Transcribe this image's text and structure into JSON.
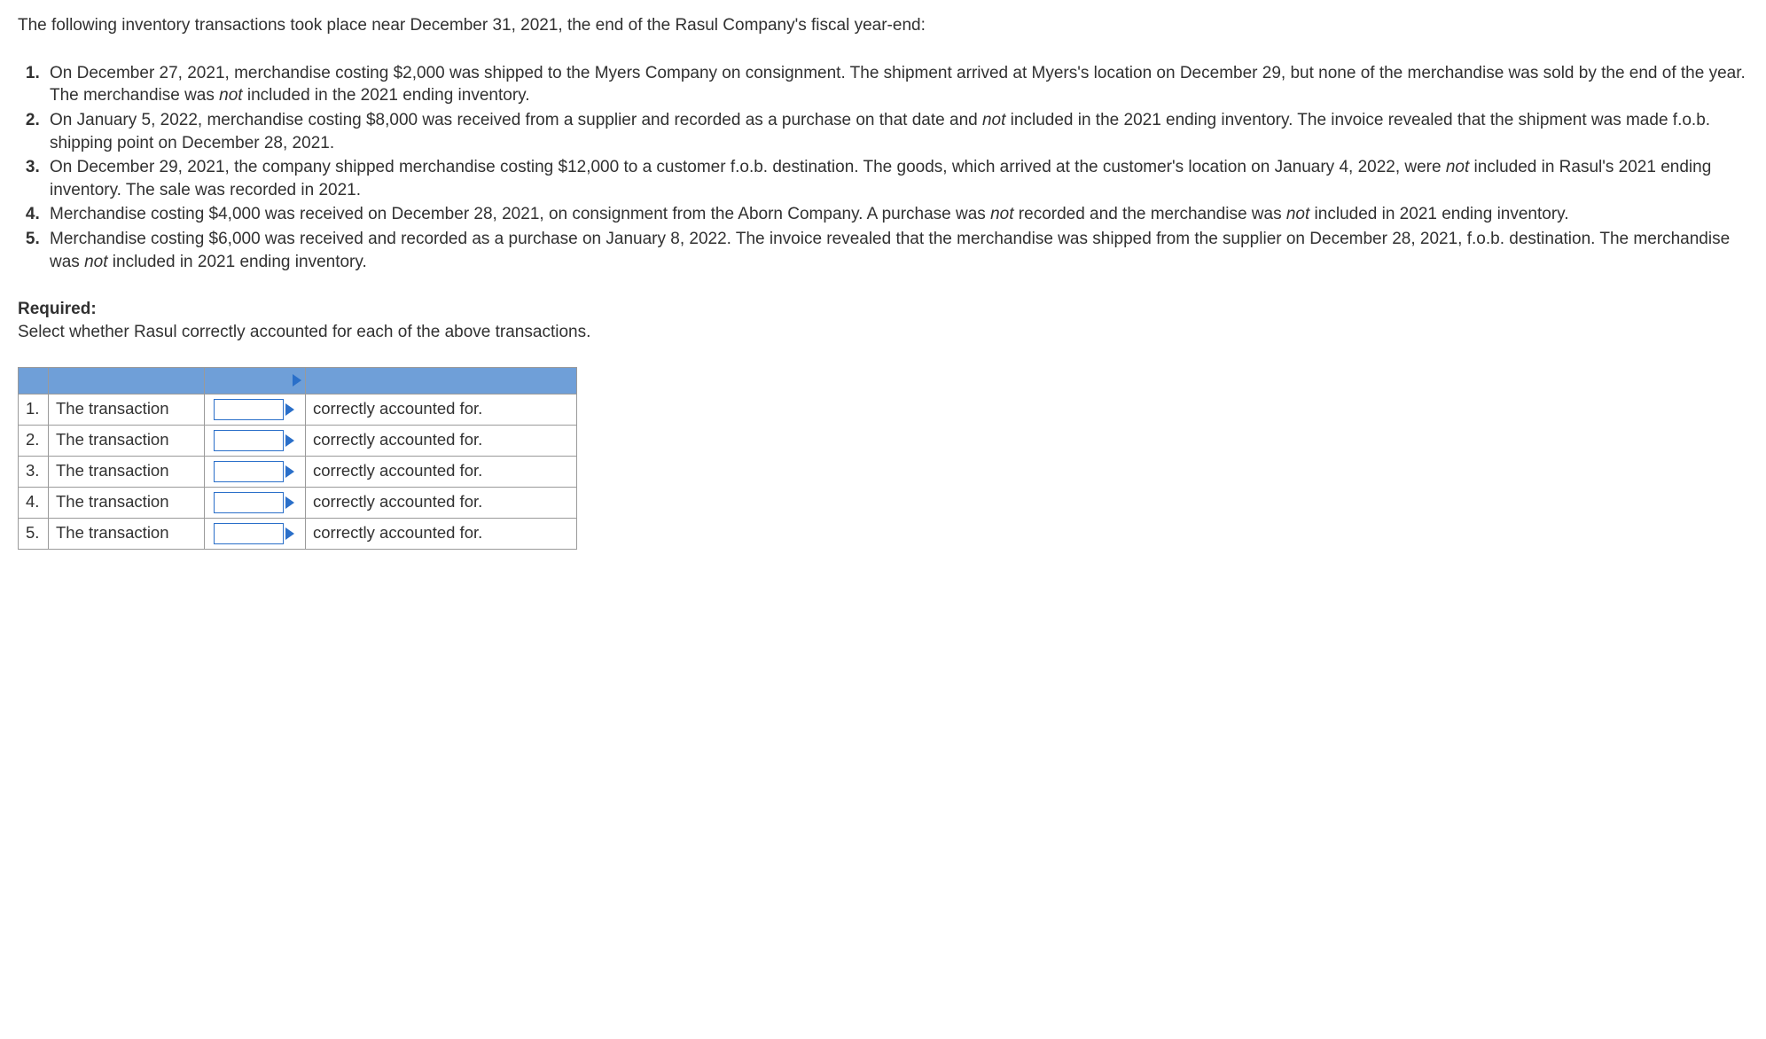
{
  "intro": "The following inventory transactions took place near December 31, 2021, the end of the Rasul Company's fiscal year-end:",
  "items": [
    {
      "pre": "On December 27, 2021, merchandise costing $2,000 was shipped to the Myers Company on consignment. The shipment arrived at Myers's location on December 29, but none of the merchandise was sold by the end of the year. The merchandise was ",
      "em": "not",
      "post": " included in the 2021 ending inventory."
    },
    {
      "pre": "On January 5, 2022, merchandise costing $8,000 was received from a supplier and recorded as a purchase on that date and ",
      "em": "not",
      "post": " included in the 2021 ending inventory. The invoice revealed that the shipment was made f.o.b. shipping point on December 28, 2021."
    },
    {
      "pre": "On December 29, 2021, the company shipped merchandise costing $12,000 to a customer f.o.b. destination. The goods, which arrived at the customer's location on January 4, 2022, were ",
      "em": "not",
      "post": " included in Rasul's 2021 ending inventory. The sale was recorded in 2021."
    },
    {
      "pre": "Merchandise costing $4,000 was received on December 28, 2021, on consignment from the Aborn Company. A purchase was ",
      "em": "not",
      "post1": " recorded and the merchandise was ",
      "em2": "not",
      "post2": " included in 2021 ending inventory."
    },
    {
      "pre": "Merchandise costing $6,000 was received and recorded as a purchase on January 8, 2022. The invoice revealed that the merchandise was shipped from the supplier on December 28, 2021, f.o.b. destination. The merchandise was ",
      "em": "not",
      "post": " included in 2021 ending inventory."
    }
  ],
  "required_label": "Required:",
  "required_text": "Select whether Rasul correctly accounted for each of the above transactions.",
  "table": {
    "rows": [
      {
        "num": "1.",
        "txn": "The transaction",
        "end": "correctly accounted for."
      },
      {
        "num": "2.",
        "txn": "The transaction",
        "end": "correctly accounted for."
      },
      {
        "num": "3.",
        "txn": "The transaction",
        "end": "correctly accounted for."
      },
      {
        "num": "4.",
        "txn": "The transaction",
        "end": "correctly accounted for."
      },
      {
        "num": "5.",
        "txn": "The transaction",
        "end": "correctly accounted for."
      }
    ]
  },
  "colors": {
    "header_bg": "#6f9fd8",
    "border": "#9a9a9a",
    "select_border": "#2a6fc9",
    "text": "#313131"
  }
}
